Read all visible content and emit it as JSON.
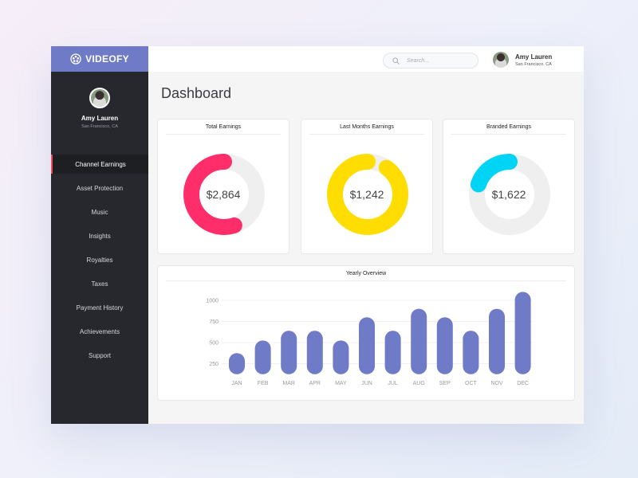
{
  "brand": {
    "name": "VIDEOFY",
    "icon": "film-reel-icon"
  },
  "user": {
    "name": "Amy Lauren",
    "location": "San Francisco, CA"
  },
  "nav": [
    {
      "label": "Channel Earnings",
      "active": true
    },
    {
      "label": "Asset Protection"
    },
    {
      "label": "Music"
    },
    {
      "label": "Insights"
    },
    {
      "label": "Royalties"
    },
    {
      "label": "Taxes"
    },
    {
      "label": "Payment History"
    },
    {
      "label": "Achievements"
    },
    {
      "label": "Support"
    }
  ],
  "search": {
    "placeholder": "Search..."
  },
  "page_title": "Dashboard",
  "cards": [
    {
      "title": "Total Earnings",
      "value": "$2,864",
      "fraction": 0.55,
      "color": "#ff2d6a"
    },
    {
      "title": "Last Months Earnings",
      "value": "$1,242",
      "fraction": 0.9,
      "color": "#ffdd00"
    },
    {
      "title": "Branded Earnings",
      "value": "$1,622",
      "fraction": 0.2,
      "color": "#00d4f5"
    }
  ],
  "chart_data": {
    "type": "bar",
    "title": "Yearly Overview",
    "categories": [
      "JAN",
      "FEB",
      "MAR",
      "APR",
      "MAY",
      "JUN",
      "JUL",
      "AUG",
      "SEP",
      "OCT",
      "NOV",
      "DEC"
    ],
    "values": [
      375,
      525,
      640,
      640,
      525,
      800,
      640,
      900,
      800,
      640,
      900,
      1100
    ],
    "yticks": [
      250,
      500,
      750,
      1000
    ],
    "ytick_labels": [
      "250",
      "500",
      "750",
      "1000"
    ],
    "ylim": [
      0,
      1100
    ],
    "color": "#6f7bc6",
    "grid": true
  }
}
